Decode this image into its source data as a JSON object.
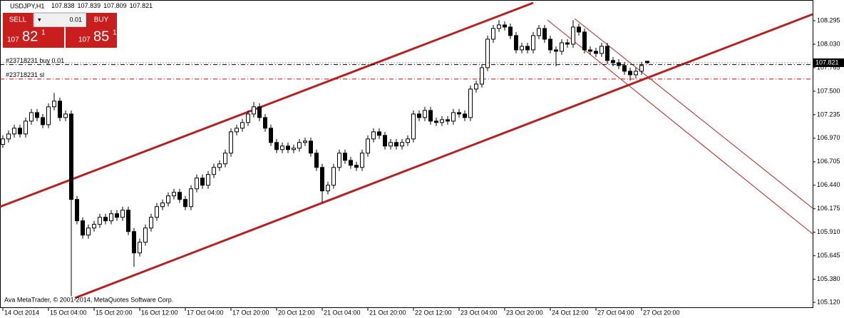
{
  "chart_data": {
    "type": "candlestick",
    "symbol": "USDJPY,H1",
    "footer": "Ava MetaTrader, © 2001-2014, MetaQuotes Software Corp.",
    "panel": {
      "sell": "SELL",
      "buy": "BUY",
      "lot": "0.01",
      "sell_price": [
        "107",
        "82",
        "1"
      ],
      "buy_price": [
        "107",
        "85",
        "1"
      ]
    },
    "orders": [
      {
        "label": "#23718231 buy 0.01",
        "price": 107.8
      },
      {
        "label": "#23718231 sl",
        "price": 107.637
      }
    ],
    "ylim": [
      105.056,
      108.528
    ],
    "yticks": [
      108.295,
      {
        "value": 108.03,
        "label": "108.030"
      },
      107.765,
      {
        "value": 107.5,
        "label": "107.500"
      },
      107.235,
      {
        "value": 106.97,
        "label": "106.970"
      },
      106.705,
      {
        "value": 106.44,
        "label": "106.440"
      },
      106.175,
      {
        "value": 105.91,
        "label": "105.910"
      },
      105.645,
      {
        "value": 105.38,
        "label": "105.380"
      },
      {
        "value": 105.12,
        "label": "105.120"
      }
    ],
    "xticks": [
      "14 Oct 2014",
      "15 Oct 04:00",
      "15 Oct 20:00",
      "16 Oct 12:00",
      "17 Oct 04:00",
      "17 Oct 20:00",
      "20 Oct 12:00",
      "21 Oct 04:00",
      "21 Oct 20:00",
      "22 Oct 12:00",
      "23 Oct 04:00",
      "23 Oct 20:00",
      "24 Oct 12:00",
      "27 Oct 04:00",
      "27 Oct 20:00"
    ],
    "open": [
      106.9,
      106.962,
      107.018,
      107.083,
      107.018,
      107.163,
      107.259,
      107.203,
      107.123,
      107.324,
      107.388,
      107.203,
      107.243,
      106.28,
      106.039,
      105.878,
      105.958,
      105.999,
      106.079,
      106.039,
      106.119,
      106.079,
      106.159,
      105.918,
      105.677,
      105.798,
      105.958,
      106.079,
      106.199,
      106.24,
      106.32,
      106.36,
      106.28,
      106.199,
      106.4,
      106.521,
      106.44,
      106.561,
      106.641,
      106.681,
      106.802,
      107.042,
      107.083,
      107.147,
      107.243,
      107.324,
      107.203,
      107.083,
      106.922,
      106.842,
      106.882,
      106.842,
      106.858,
      106.922,
      106.938,
      106.802,
      106.641,
      106.376,
      106.44,
      106.641,
      106.802,
      106.721,
      106.665,
      106.641,
      106.802,
      106.962,
      107.042,
      107.002,
      106.882,
      106.922,
      106.882,
      106.922,
      106.962,
      107.243,
      107.203,
      107.283,
      107.163,
      107.147,
      107.179,
      107.163,
      107.259,
      107.243,
      107.203,
      107.524,
      107.58,
      107.765,
      108.086,
      108.207,
      108.247,
      108.223,
      108.127,
      107.966,
      108.006,
      107.966,
      108.127,
      108.207,
      108.086,
      107.966,
      107.95,
      108.046,
      108.03,
      108.223,
      108.167,
      107.966,
      107.95,
      107.926,
      108.006,
      107.846,
      107.821,
      107.789,
      107.725,
      107.685,
      107.725,
      107.838
    ],
    "high": [
      107.002,
      107.058,
      107.123,
      107.123,
      107.203,
      107.299,
      107.299,
      107.243,
      107.364,
      107.48,
      107.428,
      107.283,
      107.283,
      106.32,
      106.079,
      105.998,
      106.039,
      106.119,
      106.119,
      106.159,
      106.159,
      106.199,
      106.199,
      105.958,
      105.838,
      105.998,
      106.119,
      106.239,
      106.28,
      106.36,
      106.4,
      106.4,
      106.32,
      106.44,
      106.561,
      106.561,
      106.601,
      106.681,
      106.721,
      106.842,
      107.082,
      107.123,
      107.187,
      107.283,
      107.38,
      107.364,
      107.243,
      107.123,
      106.962,
      106.922,
      106.922,
      106.898,
      106.962,
      106.978,
      106.978,
      106.842,
      106.681,
      106.48,
      106.681,
      106.842,
      106.842,
      106.761,
      106.705,
      106.842,
      107.002,
      107.082,
      107.082,
      107.042,
      106.962,
      106.962,
      106.962,
      107.002,
      107.283,
      107.283,
      107.323,
      107.323,
      107.203,
      107.219,
      107.219,
      107.299,
      107.299,
      107.283,
      107.564,
      107.62,
      107.805,
      108.126,
      108.247,
      108.3,
      108.287,
      108.263,
      108.167,
      108.046,
      108.046,
      108.167,
      108.247,
      108.247,
      108.126,
      108.006,
      108.086,
      108.086,
      108.3,
      108.263,
      108.207,
      108.006,
      107.99,
      108.046,
      108.046,
      107.886,
      107.861,
      107.829,
      107.765,
      107.765,
      107.829,
      107.839
    ],
    "low": [
      106.86,
      106.922,
      106.978,
      106.978,
      106.978,
      107.123,
      107.163,
      107.083,
      107.083,
      107.284,
      107.163,
      107.163,
      105.19,
      105.999,
      105.838,
      105.838,
      105.918,
      105.959,
      105.999,
      105.999,
      106.039,
      106.039,
      105.878,
      105.52,
      105.637,
      105.758,
      105.918,
      106.039,
      106.159,
      106.2,
      106.28,
      106.24,
      106.159,
      106.159,
      106.36,
      106.4,
      106.4,
      106.521,
      106.601,
      106.641,
      106.762,
      107.002,
      107.043,
      107.107,
      107.203,
      107.163,
      107.043,
      106.882,
      106.802,
      106.802,
      106.802,
      106.802,
      106.818,
      106.882,
      106.762,
      106.601,
      106.24,
      106.336,
      106.4,
      106.601,
      106.681,
      106.625,
      106.601,
      106.601,
      106.762,
      106.922,
      106.962,
      106.842,
      106.842,
      106.842,
      106.842,
      106.882,
      106.922,
      107.163,
      107.163,
      107.123,
      107.107,
      107.107,
      107.123,
      107.123,
      107.203,
      107.163,
      107.163,
      107.484,
      107.54,
      107.725,
      108.046,
      108.167,
      108.183,
      108.087,
      107.926,
      107.926,
      107.926,
      107.926,
      108.087,
      108.046,
      107.926,
      107.78,
      107.91,
      107.99,
      107.99,
      108.127,
      107.926,
      107.91,
      107.886,
      107.886,
      107.806,
      107.781,
      107.749,
      107.685,
      107.62,
      107.645,
      107.685,
      107.809
    ],
    "close": [
      106.962,
      107.018,
      107.083,
      107.018,
      107.163,
      107.259,
      107.203,
      107.123,
      107.324,
      107.388,
      107.203,
      107.243,
      106.28,
      106.039,
      105.878,
      105.958,
      105.999,
      106.079,
      106.039,
      106.119,
      106.079,
      106.159,
      105.918,
      105.677,
      105.798,
      105.958,
      106.079,
      106.199,
      106.24,
      106.32,
      106.36,
      106.28,
      106.199,
      106.4,
      106.521,
      106.44,
      106.561,
      106.641,
      106.681,
      106.802,
      107.042,
      107.083,
      107.147,
      107.243,
      107.324,
      107.203,
      107.083,
      106.922,
      106.842,
      106.882,
      106.842,
      106.858,
      106.922,
      106.938,
      106.802,
      106.641,
      106.376,
      106.44,
      106.641,
      106.802,
      106.721,
      106.665,
      106.641,
      106.802,
      106.962,
      107.042,
      107.002,
      106.882,
      106.922,
      106.882,
      106.922,
      106.962,
      107.243,
      107.203,
      107.283,
      107.163,
      107.147,
      107.179,
      107.163,
      107.259,
      107.243,
      107.203,
      107.524,
      107.58,
      107.765,
      108.086,
      108.207,
      108.247,
      108.223,
      108.127,
      107.966,
      108.006,
      107.966,
      108.127,
      108.207,
      108.086,
      107.966,
      107.95,
      108.046,
      108.03,
      108.223,
      108.167,
      107.966,
      107.95,
      107.926,
      108.006,
      107.846,
      107.821,
      107.789,
      107.725,
      107.685,
      107.725,
      107.789,
      107.821
    ]
  }
}
